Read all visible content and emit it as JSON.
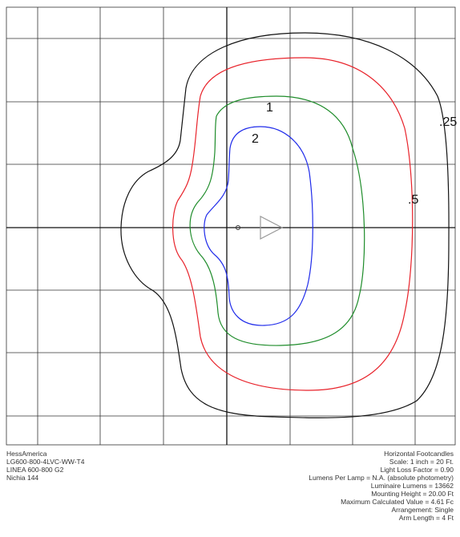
{
  "manufacturer_info": {
    "company": "HessAmerica",
    "catalog_number": "LG600-800-4LVC-WW-T4",
    "product": "LINEA 600-800 G2",
    "led": "Nichia 144"
  },
  "photometry_info": {
    "title": "Horizontal Footcandles",
    "scale": "Scale: 1 inch = 20 Ft.",
    "light_loss_factor": "Light Loss Factor = 0.90",
    "lumens_per_lamp": "Lumens Per Lamp = N.A. (absolute photometry)",
    "luminaire_lumens": "Luminaire Lumens = 13662",
    "mounting_height": "Mounting Height = 20.00 Ft",
    "max_value": "Maximum Calculated Value = 4.61 Fc",
    "arrangement": "Arrangement: Single",
    "arm_length": "Arm Length = 4 Ft"
  },
  "isolines": [
    {
      "label": ".25",
      "value": 0.25,
      "color": "#111111"
    },
    {
      "label": ".5",
      "value": 0.5,
      "color": "#e8222a"
    },
    {
      "label": "1",
      "value": 1,
      "color": "#1e8c2a"
    },
    {
      "label": "2",
      "value": 2,
      "color": "#1f2bea"
    }
  ],
  "colors": {
    "grid": "#333333",
    "luminaire_marker": "#999999"
  }
}
